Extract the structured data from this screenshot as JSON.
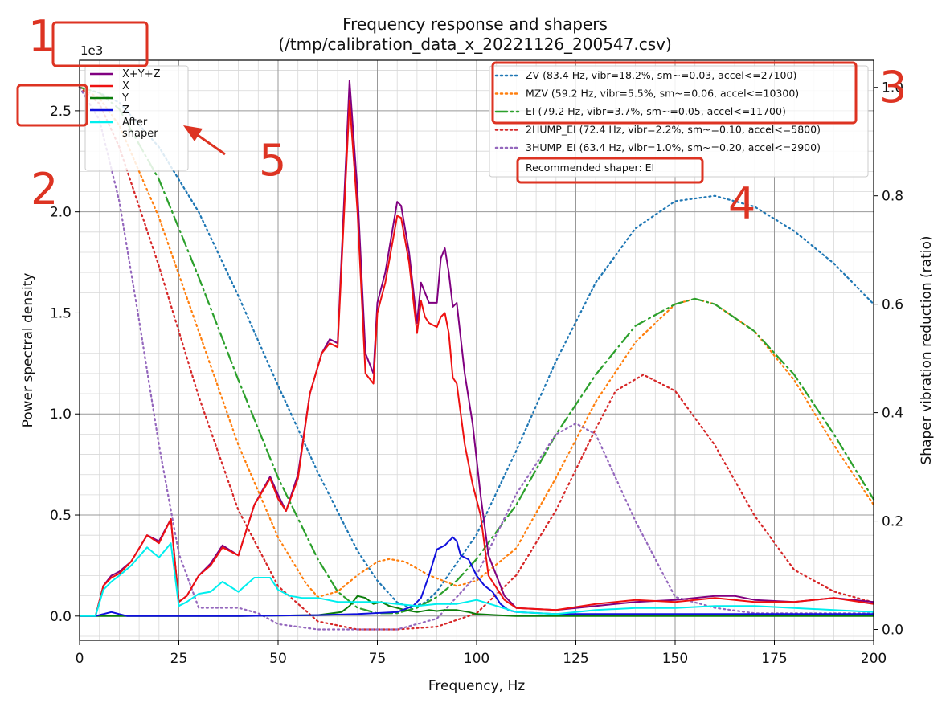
{
  "chart_data": {
    "type": "line",
    "title": "Frequency response and shapers",
    "subtitle": "(/tmp/calibration_data_x_20221126_200547.csv)",
    "xlabel": "Frequency, Hz",
    "ylabel": "Power spectral density",
    "y2label": "Shaper vibration reduction (ratio)",
    "y_offset_text": "1e3",
    "xlim": [
      0,
      200
    ],
    "ylim": [
      -0.12,
      2.75
    ],
    "y2lim": [
      -0.02,
      1.05
    ],
    "grid": true,
    "x_ticks": [
      0,
      25,
      50,
      75,
      100,
      125,
      150,
      175,
      200
    ],
    "x_tick_labels": [
      "0",
      "25",
      "50",
      "75",
      "100",
      "125",
      "150",
      "175",
      "200"
    ],
    "y_ticks": [
      0,
      0.5,
      1.0,
      1.5,
      2.0,
      2.5
    ],
    "y_tick_labels": [
      "0.0",
      "0.5",
      "1.0",
      "1.5",
      "2.0",
      "2.5"
    ],
    "y2_ticks": [
      0,
      0.2,
      0.4,
      0.6,
      0.8,
      1.0
    ],
    "y2_tick_labels": [
      "0.0",
      "0.2",
      "0.4",
      "0.6",
      "0.8",
      "1.0"
    ],
    "legend_left_position": "upper-left",
    "legend_right_position": "upper-right",
    "psd_series": [
      {
        "name": "X+Y+Z",
        "color": "#800080",
        "width": 2,
        "x": [
          0,
          4,
          6,
          8,
          10,
          13,
          17,
          20,
          23,
          25,
          27,
          30,
          33,
          36,
          40,
          44,
          48,
          50,
          52,
          55,
          58,
          61,
          63,
          65,
          68,
          70,
          72,
          74,
          75,
          77,
          80,
          81,
          83,
          85,
          86,
          87,
          88,
          90,
          91,
          92,
          93,
          94,
          95,
          97,
          99,
          101,
          103,
          107,
          110,
          120,
          130,
          140,
          150,
          155,
          160,
          165,
          170,
          180,
          190,
          200
        ],
        "y": [
          0,
          0,
          0.15,
          0.2,
          0.22,
          0.27,
          0.4,
          0.37,
          0.48,
          0.07,
          0.1,
          0.2,
          0.26,
          0.35,
          0.3,
          0.55,
          0.69,
          0.6,
          0.52,
          0.7,
          1.1,
          1.3,
          1.37,
          1.35,
          2.65,
          2.1,
          1.3,
          1.2,
          1.55,
          1.7,
          2.05,
          2.03,
          1.8,
          1.45,
          1.65,
          1.6,
          1.55,
          1.55,
          1.77,
          1.82,
          1.7,
          1.53,
          1.55,
          1.2,
          0.95,
          0.6,
          0.3,
          0.1,
          0.04,
          0.03,
          0.05,
          0.07,
          0.08,
          0.09,
          0.1,
          0.1,
          0.08,
          0.07,
          0.09,
          0.07
        ]
      },
      {
        "name": "X",
        "color": "#ee1111",
        "width": 2,
        "x": [
          0,
          4,
          6,
          8,
          10,
          13,
          17,
          20,
          23,
          25,
          27,
          30,
          33,
          36,
          40,
          44,
          48,
          50,
          52,
          55,
          58,
          61,
          63,
          65,
          68,
          70,
          72,
          74,
          75,
          77,
          80,
          81,
          83,
          85,
          86,
          87,
          88,
          90,
          91,
          92,
          93,
          94,
          95,
          97,
          99,
          101,
          103,
          107,
          110,
          120,
          130,
          140,
          150,
          155,
          160,
          165,
          170,
          180,
          190,
          200
        ],
        "y": [
          0,
          0,
          0.15,
          0.19,
          0.21,
          0.27,
          0.4,
          0.36,
          0.48,
          0.07,
          0.1,
          0.2,
          0.25,
          0.34,
          0.3,
          0.55,
          0.68,
          0.58,
          0.52,
          0.68,
          1.1,
          1.3,
          1.35,
          1.33,
          2.55,
          2.0,
          1.2,
          1.15,
          1.5,
          1.65,
          1.98,
          1.97,
          1.75,
          1.4,
          1.56,
          1.48,
          1.45,
          1.43,
          1.48,
          1.5,
          1.4,
          1.18,
          1.15,
          0.85,
          0.65,
          0.5,
          0.2,
          0.08,
          0.04,
          0.03,
          0.06,
          0.08,
          0.07,
          0.08,
          0.09,
          0.08,
          0.07,
          0.07,
          0.09,
          0.06
        ]
      },
      {
        "name": "Y",
        "color": "#0a7d0a",
        "width": 2,
        "x": [
          0,
          10,
          20,
          40,
          60,
          66,
          68,
          70,
          72,
          74,
          76,
          78,
          80,
          82,
          85,
          88,
          90,
          92,
          95,
          98,
          100,
          105,
          110,
          200
        ],
        "y": [
          0,
          0,
          0,
          0,
          0.005,
          0.02,
          0.05,
          0.1,
          0.09,
          0.06,
          0.07,
          0.05,
          0.04,
          0.03,
          0.02,
          0.03,
          0.025,
          0.03,
          0.03,
          0.02,
          0.01,
          0.005,
          0,
          0
        ]
      },
      {
        "name": "Z",
        "color": "#1010dd",
        "width": 2,
        "x": [
          0,
          4,
          6,
          8,
          10,
          12,
          20,
          40,
          60,
          70,
          80,
          84,
          86,
          88,
          90,
          92,
          94,
          95,
          96,
          98,
          100,
          102,
          104,
          106,
          108,
          110,
          120,
          140,
          160,
          180,
          200
        ],
        "y": [
          0,
          0,
          0.01,
          0.02,
          0.01,
          0,
          0,
          0,
          0.005,
          0.01,
          0.02,
          0.05,
          0.09,
          0.2,
          0.33,
          0.35,
          0.39,
          0.37,
          0.3,
          0.28,
          0.2,
          0.15,
          0.12,
          0.06,
          0.03,
          0.02,
          0.01,
          0.01,
          0.01,
          0.01,
          0.01
        ]
      },
      {
        "name": "After\nshaper",
        "color": "#00eeee",
        "width": 2,
        "x": [
          0,
          4,
          6,
          8,
          10,
          13,
          17,
          20,
          23,
          25,
          27,
          30,
          33,
          36,
          40,
          44,
          48,
          50,
          53,
          56,
          60,
          65,
          70,
          75,
          80,
          85,
          90,
          95,
          100,
          105,
          110,
          120,
          130,
          140,
          150,
          160,
          170,
          180,
          190,
          200
        ],
        "y": [
          0,
          0,
          0.13,
          0.17,
          0.2,
          0.25,
          0.34,
          0.29,
          0.36,
          0.05,
          0.07,
          0.11,
          0.12,
          0.17,
          0.12,
          0.19,
          0.19,
          0.13,
          0.1,
          0.09,
          0.09,
          0.07,
          0.07,
          0.07,
          0.06,
          0.05,
          0.06,
          0.06,
          0.08,
          0.05,
          0.02,
          0.01,
          0.03,
          0.04,
          0.04,
          0.05,
          0.05,
          0.04,
          0.03,
          0.02
        ]
      }
    ],
    "shaper_series": [
      {
        "name": "ZV (83.4 Hz, vibr=18.2%, sm~=0.03, accel<=27100)",
        "color": "#1f77b4",
        "style": "dotted",
        "x": [
          0,
          5,
          10,
          20,
          30,
          40,
          50,
          60,
          70,
          75,
          80,
          83.4,
          87,
          90,
          100,
          110,
          120,
          130,
          140,
          150,
          160,
          170,
          180,
          190,
          200
        ],
        "y": [
          1.0,
          0.99,
          0.972,
          0.89,
          0.77,
          0.615,
          0.45,
          0.29,
          0.145,
          0.09,
          0.05,
          0.04,
          0.05,
          0.07,
          0.175,
          0.33,
          0.495,
          0.64,
          0.74,
          0.79,
          0.8,
          0.78,
          0.735,
          0.675,
          0.6
        ]
      },
      {
        "name": "MZV (59.2 Hz, vibr=5.5%, sm~=0.06, accel<=10300)",
        "color": "#ff7f0e",
        "style": "dotted",
        "x": [
          0,
          5,
          10,
          20,
          30,
          40,
          50,
          57,
          60,
          65,
          70,
          75,
          78,
          82,
          88,
          95,
          100,
          110,
          120,
          130,
          140,
          150,
          155,
          160,
          170,
          180,
          190,
          200
        ],
        "y": [
          1.0,
          0.98,
          0.93,
          0.76,
          0.55,
          0.34,
          0.17,
          0.085,
          0.06,
          0.07,
          0.1,
          0.125,
          0.13,
          0.125,
          0.1,
          0.08,
          0.09,
          0.15,
          0.28,
          0.42,
          0.53,
          0.6,
          0.61,
          0.6,
          0.55,
          0.46,
          0.34,
          0.23
        ]
      },
      {
        "name": "EI (79.2 Hz, vibr=3.7%, sm~=0.05, accel<=11700)",
        "color": "#2ca02c",
        "style": "dashdot",
        "x": [
          0,
          5,
          10,
          20,
          30,
          40,
          50,
          60,
          65,
          70,
          75,
          80,
          85,
          90,
          95,
          100,
          110,
          120,
          130,
          140,
          150,
          155,
          160,
          170,
          180,
          190,
          200
        ],
        "y": [
          1.0,
          0.99,
          0.96,
          0.83,
          0.65,
          0.46,
          0.28,
          0.13,
          0.07,
          0.04,
          0.03,
          0.03,
          0.04,
          0.06,
          0.09,
          0.13,
          0.23,
          0.36,
          0.47,
          0.56,
          0.6,
          0.61,
          0.6,
          0.55,
          0.47,
          0.36,
          0.24
        ]
      },
      {
        "name": "2HUMP_EI (72.4 Hz, vibr=2.2%, sm~=0.10, accel<=5800)",
        "color": "#d62728",
        "style": "dotted",
        "x": [
          0,
          5,
          10,
          20,
          30,
          40,
          50,
          60,
          70,
          80,
          90,
          100,
          110,
          120,
          130,
          135,
          142,
          150,
          160,
          170,
          180,
          190,
          200
        ],
        "y": [
          1.0,
          0.97,
          0.89,
          0.67,
          0.43,
          0.22,
          0.08,
          0.015,
          0,
          0,
          0.005,
          0.03,
          0.1,
          0.22,
          0.37,
          0.44,
          0.47,
          0.44,
          0.34,
          0.21,
          0.11,
          0.07,
          0.05
        ]
      },
      {
        "name": "3HUMP_EI (63.4 Hz, vibr=1.0%, sm~=0.20, accel<=2900)",
        "color": "#9467bd",
        "style": "dotted",
        "x": [
          0,
          5,
          10,
          15,
          20,
          25,
          30,
          35,
          40,
          45,
          50,
          60,
          70,
          80,
          90,
          100,
          110,
          120,
          125,
          130,
          140,
          150,
          160,
          170,
          180,
          190,
          200
        ],
        "y": [
          1.0,
          0.94,
          0.79,
          0.57,
          0.34,
          0.14,
          0.04,
          0.04,
          0.04,
          0.03,
          0.01,
          0,
          0,
          0,
          0.02,
          0.1,
          0.25,
          0.36,
          0.38,
          0.36,
          0.2,
          0.06,
          0.04,
          0.03,
          0.03,
          0.03,
          0.03
        ]
      }
    ],
    "recommended_text": "Recommended shaper: EI",
    "annotations": {
      "number_1": "1",
      "number_2": "2",
      "number_3": "3",
      "number_4": "4",
      "number_5": "5",
      "annotation_color": "#dd3322"
    }
  }
}
